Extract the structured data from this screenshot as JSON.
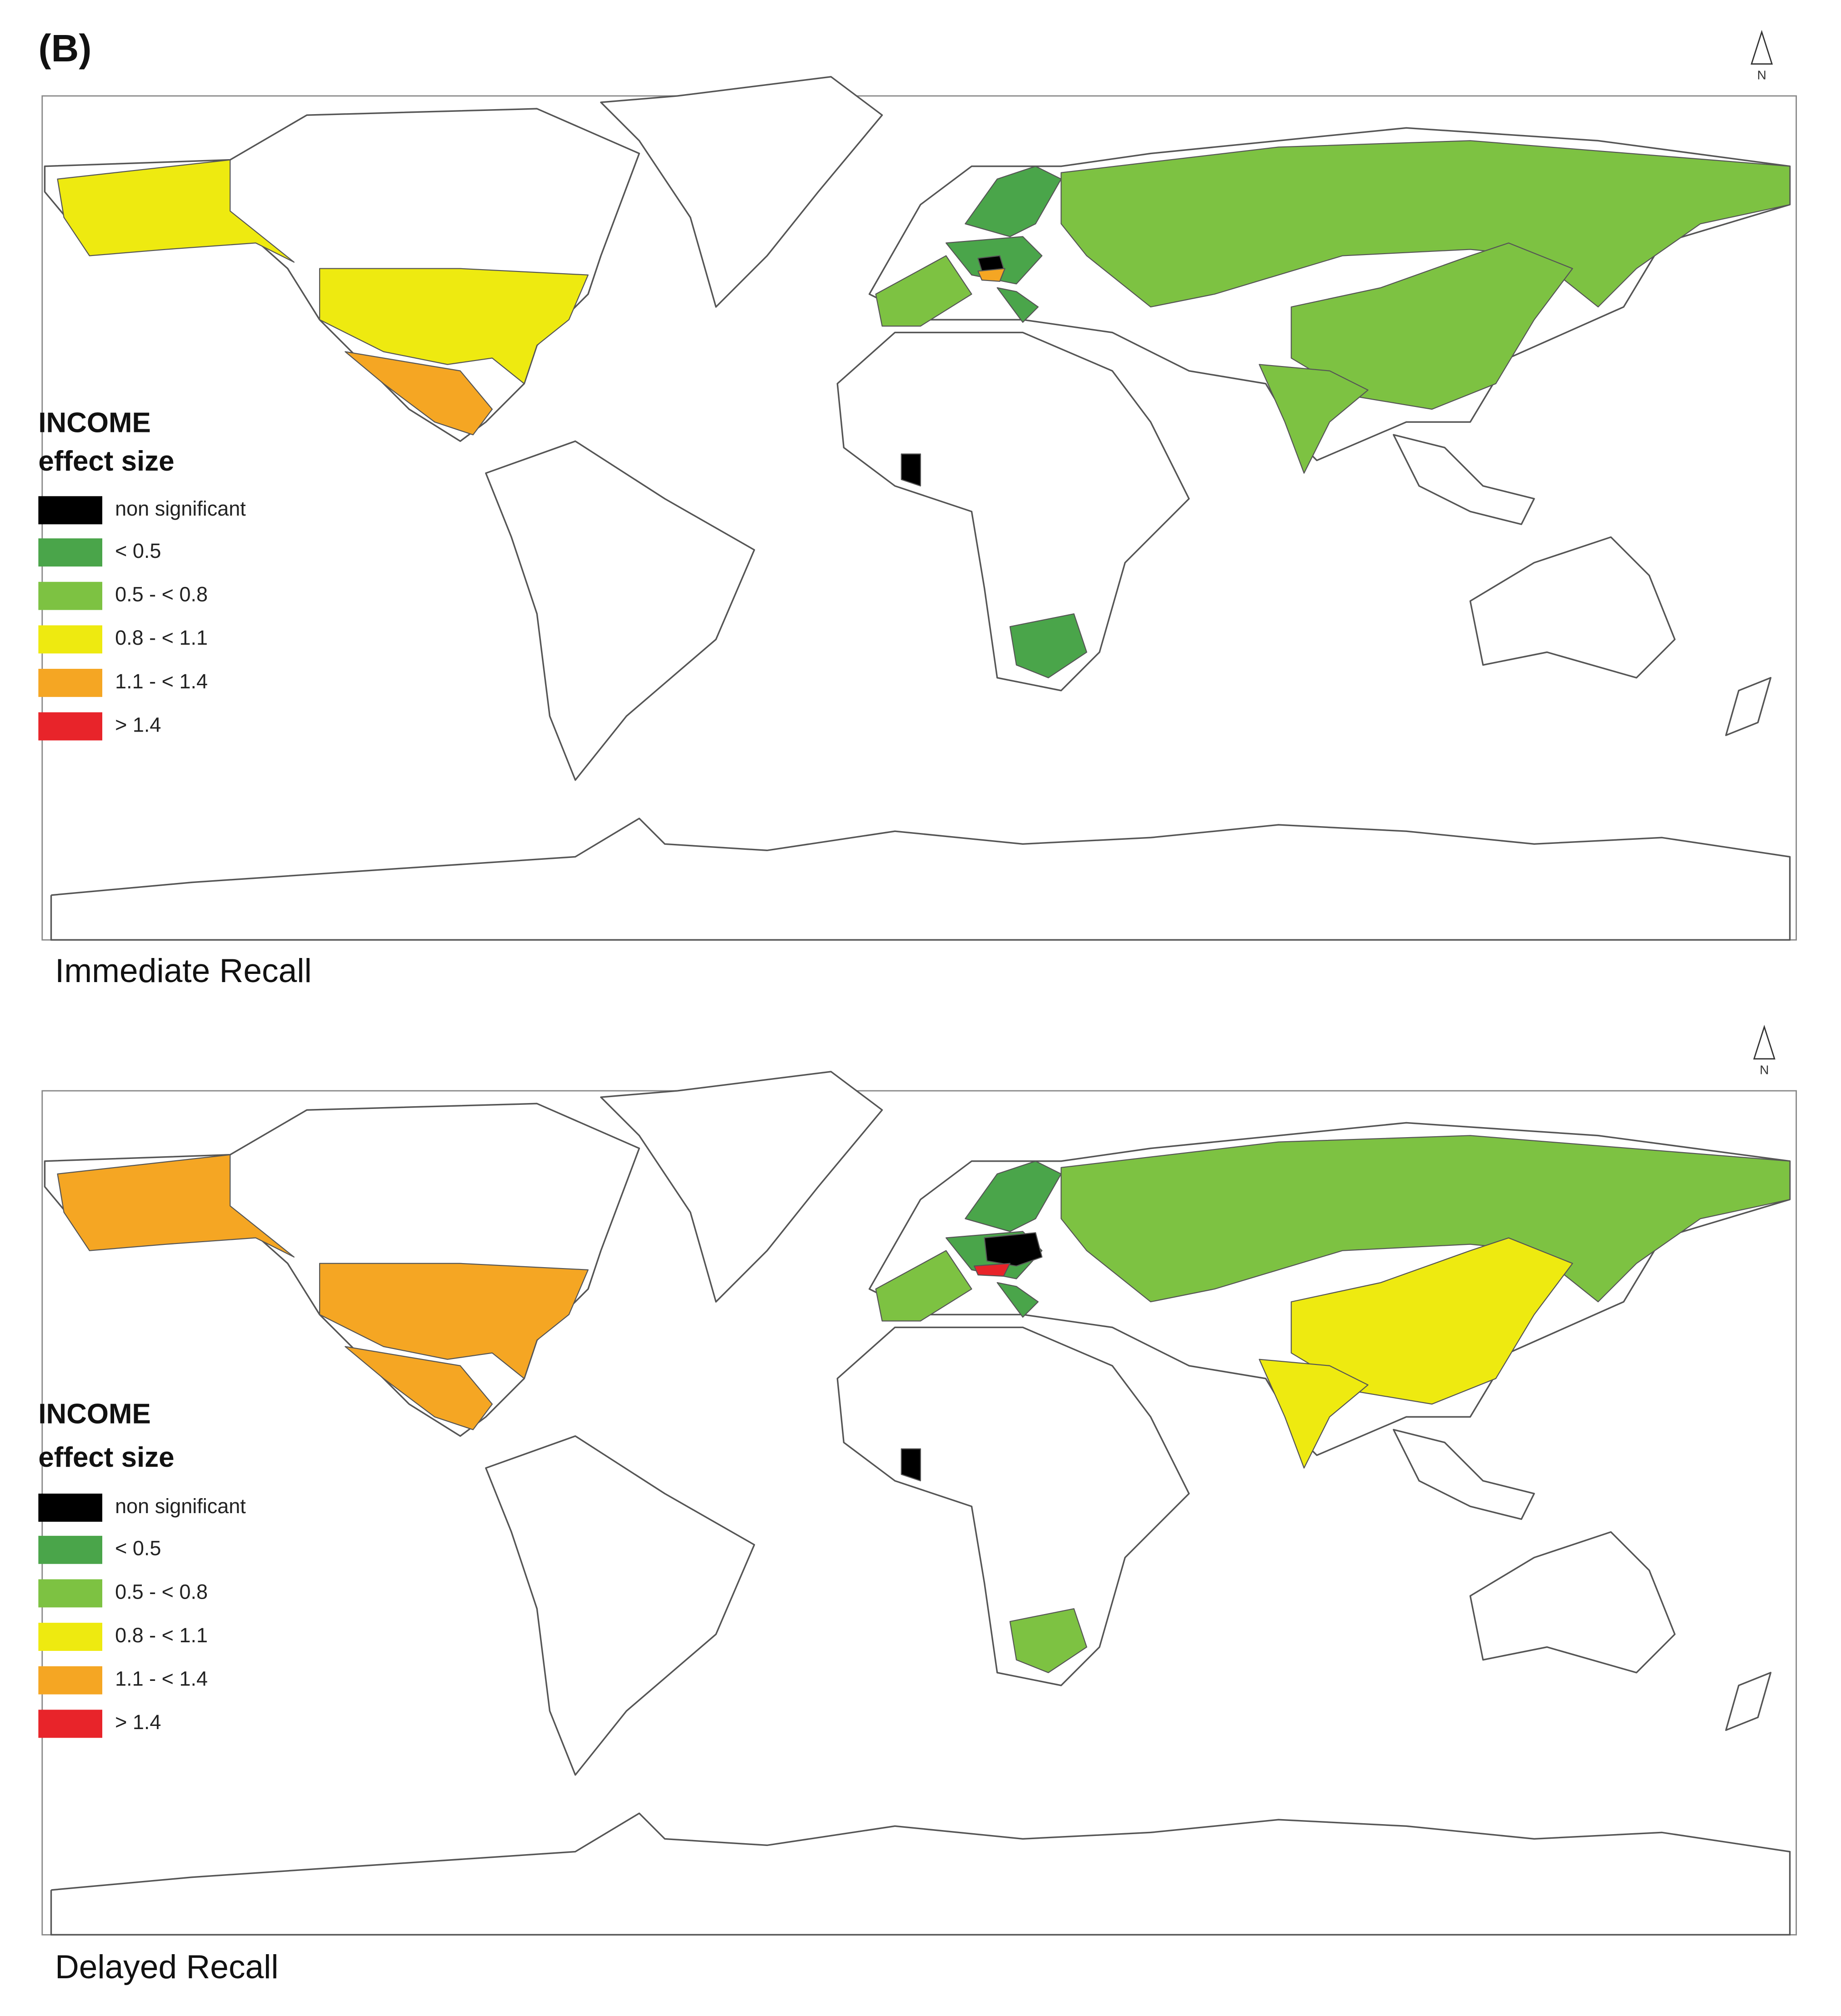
{
  "label": "(B)",
  "panels": [
    {
      "caption": "Immediate Recall",
      "north": "N",
      "legend": {
        "title": "INCOME",
        "subtitle": "effect size",
        "items": [
          {
            "label": "non significant",
            "color": "#000000"
          },
          {
            "label": "< 0.5",
            "color": "#4aa54a"
          },
          {
            "label": "0.5 - < 0.8",
            "color": "#7dc242"
          },
          {
            "label": "0.8 - < 1.1",
            "color": "#eeea10"
          },
          {
            "label": "1.1 - < 1.4",
            "color": "#f5a623"
          },
          {
            "label": "> 1.4",
            "color": "#e8242a"
          }
        ]
      }
    },
    {
      "caption": "Delayed Recall",
      "north": "N",
      "legend": {
        "title": "INCOME",
        "subtitle": "effect size",
        "items": [
          {
            "label": "non significant",
            "color": "#000000"
          },
          {
            "label": "< 0.5",
            "color": "#4aa54a"
          },
          {
            "label": "0.5 - < 0.8",
            "color": "#7dc242"
          },
          {
            "label": "0.8 - < 1.1",
            "color": "#eeea10"
          },
          {
            "label": "1.1 - < 1.4",
            "color": "#f5a623"
          },
          {
            "label": "> 1.4",
            "color": "#e8242a"
          }
        ]
      }
    }
  ]
}
